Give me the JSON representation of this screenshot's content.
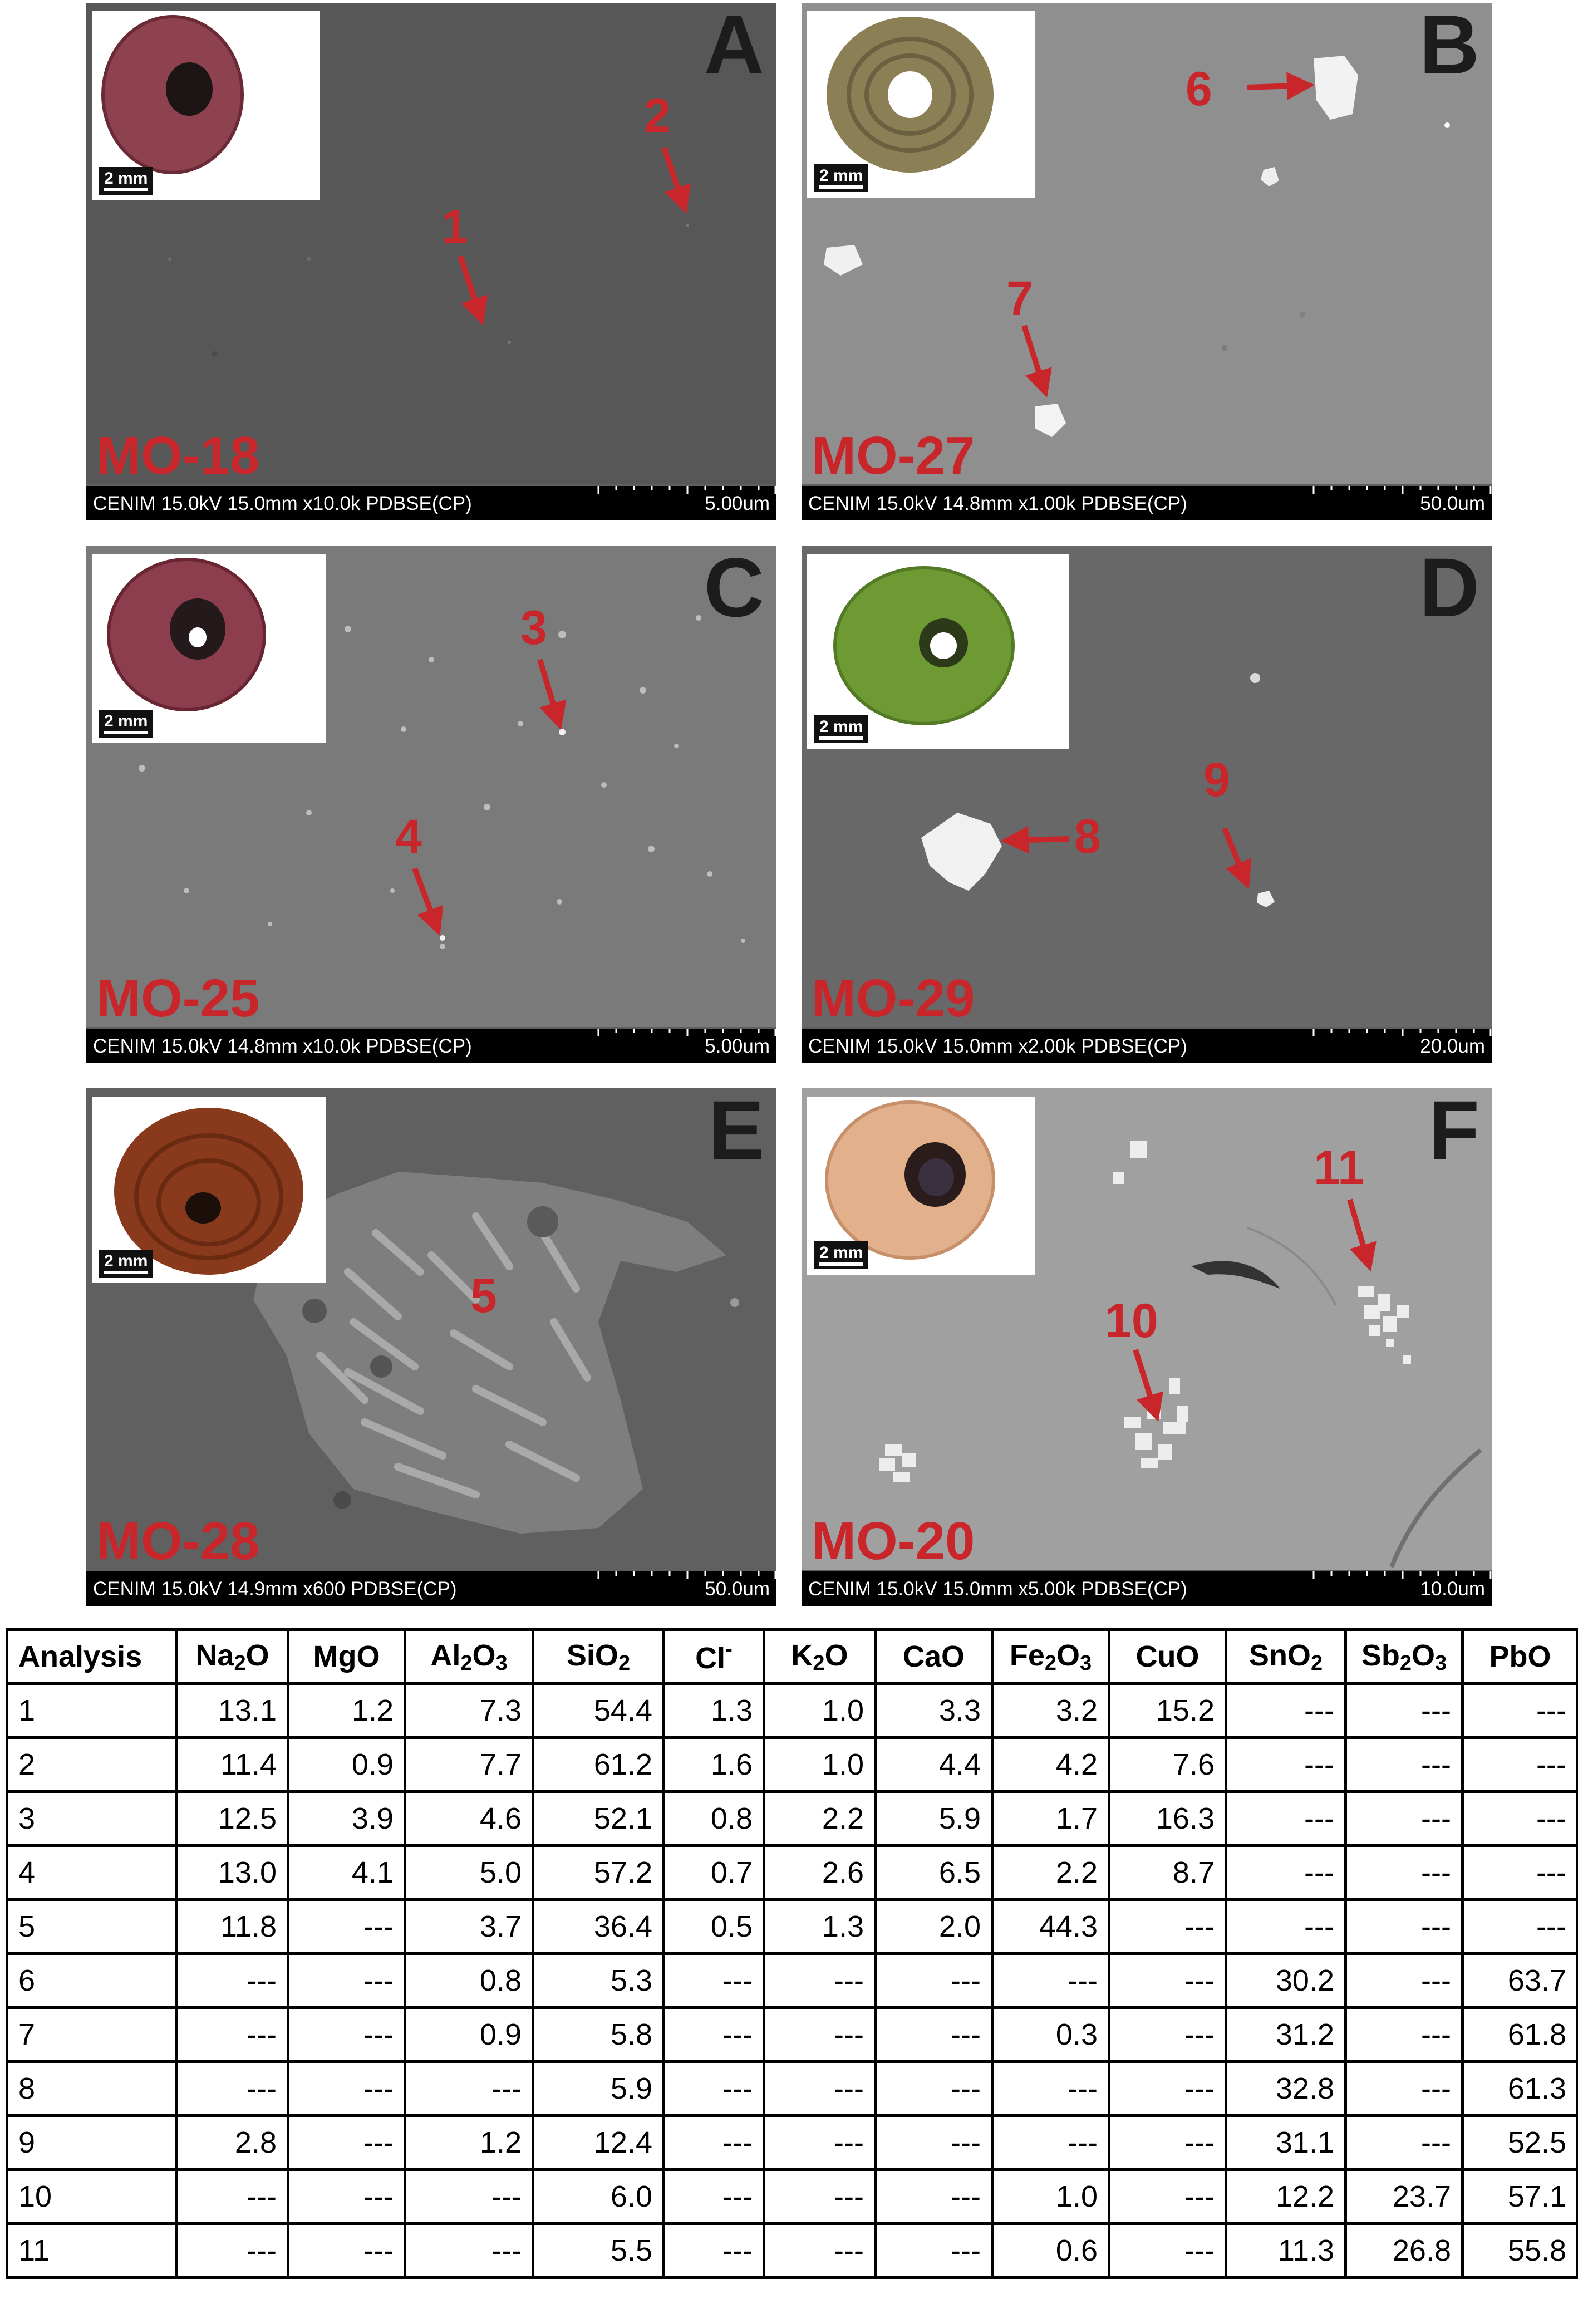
{
  "figure": {
    "panels": [
      {
        "letter": "A",
        "sample": "MO-18",
        "info": "CENIM 15.0kV 15.0mm x10.0k PDBSE(CP)",
        "scale": "5.00um",
        "inset_scale": "2 mm",
        "arrow_labels": [
          "1",
          "2"
        ],
        "bead_color": "#8e4250"
      },
      {
        "letter": "B",
        "sample": "MO-27",
        "info": "CENIM 15.0kV 14.8mm x1.00k PDBSE(CP)",
        "scale": "50.0um",
        "inset_scale": "2 mm",
        "arrow_labels": [
          "6",
          "7"
        ],
        "bead_color": "#8a7f55"
      },
      {
        "letter": "C",
        "sample": "MO-25",
        "info": "CENIM 15.0kV 14.8mm x10.0k PDBSE(CP)",
        "scale": "5.00um",
        "inset_scale": "2 mm",
        "arrow_labels": [
          "3",
          "4"
        ],
        "bead_color": "#8d3e4e"
      },
      {
        "letter": "D",
        "sample": "MO-29",
        "info": "CENIM 15.0kV 15.0mm x2.00k PDBSE(CP)",
        "scale": "20.0um",
        "inset_scale": "2 mm",
        "arrow_labels": [
          "8",
          "9"
        ],
        "bead_color": "#6e9a34"
      },
      {
        "letter": "E",
        "sample": "MO-28",
        "info": "CENIM 15.0kV 14.9mm x600 PDBSE(CP)",
        "scale": "50.0um",
        "inset_scale": "2 mm",
        "arrow_labels": [
          "5"
        ],
        "bead_color": "#8a3a1c"
      },
      {
        "letter": "F",
        "sample": "MO-20",
        "info": "CENIM 15.0kV 15.0mm x5.00k PDBSE(CP)",
        "scale": "10.0um",
        "inset_scale": "2 mm",
        "arrow_labels": [
          "10",
          "11"
        ],
        "bead_color": "#e2b08a"
      }
    ]
  },
  "table": {
    "headers": [
      "Analysis",
      "Na2O",
      "MgO",
      "Al2O3",
      "SiO2",
      "Cl-",
      "K2O",
      "CaO",
      "Fe2O3",
      "CuO",
      "SnO2",
      "Sb2O3",
      "PbO"
    ],
    "rows": [
      [
        "1",
        "13.1",
        "1.2",
        "7.3",
        "54.4",
        "1.3",
        "1.0",
        "3.3",
        "3.2",
        "15.2",
        "---",
        "---",
        "---"
      ],
      [
        "2",
        "11.4",
        "0.9",
        "7.7",
        "61.2",
        "1.6",
        "1.0",
        "4.4",
        "4.2",
        "7.6",
        "---",
        "---",
        "---"
      ],
      [
        "3",
        "12.5",
        "3.9",
        "4.6",
        "52.1",
        "0.8",
        "2.2",
        "5.9",
        "1.7",
        "16.3",
        "---",
        "---",
        "---"
      ],
      [
        "4",
        "13.0",
        "4.1",
        "5.0",
        "57.2",
        "0.7",
        "2.6",
        "6.5",
        "2.2",
        "8.7",
        "---",
        "---",
        "---"
      ],
      [
        "5",
        "11.8",
        "---",
        "3.7",
        "36.4",
        "0.5",
        "1.3",
        "2.0",
        "44.3",
        "---",
        "---",
        "---",
        "---"
      ],
      [
        "6",
        "---",
        "---",
        "0.8",
        "5.3",
        "---",
        "---",
        "---",
        "---",
        "---",
        "30.2",
        "---",
        "63.7"
      ],
      [
        "7",
        "---",
        "---",
        "0.9",
        "5.8",
        "---",
        "---",
        "---",
        "0.3",
        "---",
        "31.2",
        "---",
        "61.8"
      ],
      [
        "8",
        "---",
        "---",
        "---",
        "5.9",
        "---",
        "---",
        "---",
        "---",
        "---",
        "32.8",
        "---",
        "61.3"
      ],
      [
        "9",
        "2.8",
        "---",
        "1.2",
        "12.4",
        "---",
        "---",
        "---",
        "---",
        "---",
        "31.1",
        "---",
        "52.5"
      ],
      [
        "10",
        "---",
        "---",
        "---",
        "6.0",
        "---",
        "---",
        "---",
        "1.0",
        "---",
        "12.2",
        "23.7",
        "57.1"
      ],
      [
        "11",
        "---",
        "---",
        "---",
        "5.5",
        "---",
        "---",
        "---",
        "0.6",
        "---",
        "11.3",
        "26.8",
        "55.8"
      ]
    ]
  }
}
